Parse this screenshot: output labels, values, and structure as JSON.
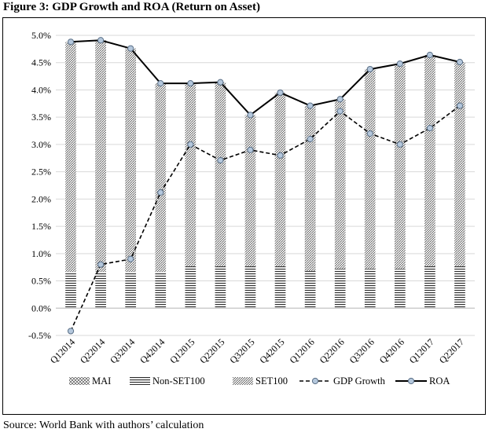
{
  "figure_title": "Figure 3: GDP Growth and ROA (Return on Asset)",
  "source": "Source: World Bank with authors’ calculation",
  "chart_data": {
    "type": "bar",
    "title": "Figure 3: GDP Growth and ROA (Return on Asset)",
    "categories": [
      "Q12014",
      "Q22014",
      "Q32014",
      "Q42014",
      "Q12015",
      "Q22015",
      "Q32015",
      "Q42015",
      "Q12016",
      "Q22016",
      "Q32016",
      "Q42016",
      "Q12017",
      "Q22017"
    ],
    "ylim": [
      -0.5,
      5.0
    ],
    "yticks": [
      "-0.5%",
      "0.0%",
      "0.5%",
      "1.0%",
      "1.5%",
      "2.0%",
      "2.5%",
      "3.0%",
      "3.5%",
      "4.0%",
      "4.5%",
      "5.0%"
    ],
    "ytick_values": [
      -0.5,
      0,
      0.5,
      1,
      1.5,
      2,
      2.5,
      3,
      3.5,
      4,
      4.5,
      5
    ],
    "grid": true,
    "stacked": true,
    "series": [
      {
        "name": "MAI",
        "kind": "bar",
        "values": [
          0.0,
          0.0,
          0.0,
          0.0,
          0.0,
          0.0,
          0.0,
          0.0,
          0.0,
          0.0,
          0.0,
          0.0,
          0.0,
          0.0
        ]
      },
      {
        "name": "Non-SET100",
        "kind": "bar",
        "values": [
          0.67,
          0.67,
          0.67,
          0.67,
          0.77,
          0.77,
          0.77,
          0.77,
          0.68,
          0.72,
          0.72,
          0.72,
          0.77,
          0.77
        ]
      },
      {
        "name": "SET100",
        "kind": "bar",
        "values": [
          4.21,
          4.24,
          4.09,
          3.45,
          3.35,
          3.37,
          2.77,
          3.18,
          3.03,
          3.11,
          3.66,
          3.76,
          3.87,
          3.74
        ]
      },
      {
        "name": "GDP Growth",
        "kind": "line",
        "style": "dashed",
        "values": [
          -0.42,
          0.8,
          0.9,
          2.12,
          3.0,
          2.71,
          2.9,
          2.8,
          3.1,
          3.61,
          3.2,
          3.0,
          3.3,
          3.71
        ]
      },
      {
        "name": "ROA",
        "kind": "line",
        "style": "solid",
        "values": [
          4.88,
          4.91,
          4.76,
          4.12,
          4.12,
          4.14,
          3.54,
          3.95,
          3.71,
          3.83,
          4.38,
          4.48,
          4.64,
          4.51
        ]
      }
    ],
    "legend": [
      "MAI",
      "Non-SET100",
      "SET100",
      "GDP Growth",
      "ROA"
    ],
    "legend_position": "bottom"
  }
}
